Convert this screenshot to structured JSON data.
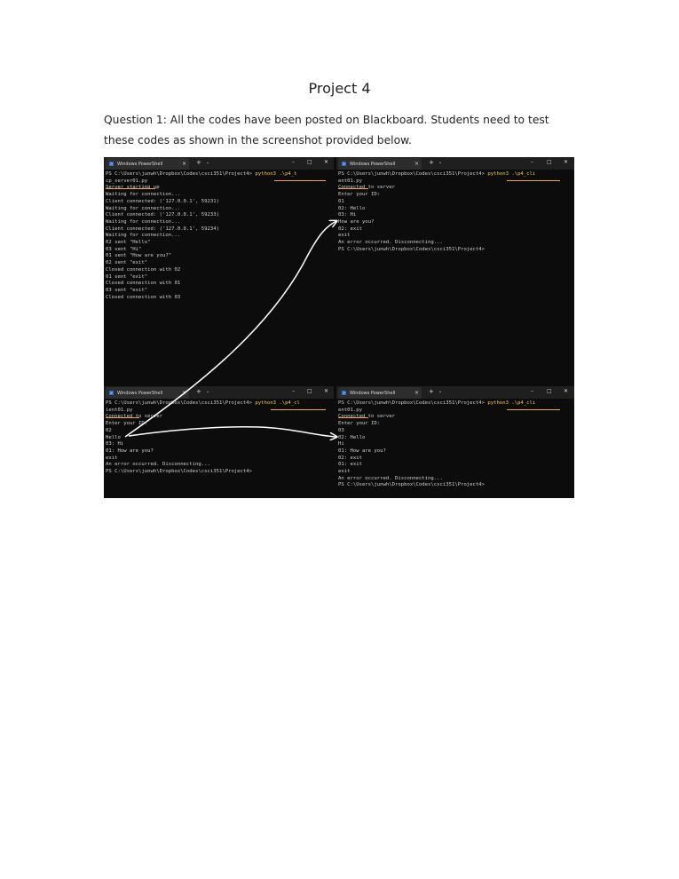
{
  "document": {
    "title": "Project 4",
    "paragraph": "Question 1: All the codes have been posted on Blackboard. Students need to test these codes as shown in the screenshot provided below."
  },
  "tab_common": {
    "title": "Windows PowerShell",
    "close": "×",
    "new_tab": "+",
    "dropdown": "⌄",
    "minimize": "–",
    "maximize": "□",
    "close_window": "✕",
    "icon_glyph": ">"
  },
  "windows": [
    {
      "lines": [
        "PS C:\\Users\\junwh\\Dropbox\\Codes\\csci351\\Project4> ",
        "cp_server01.py",
        "Server starting up",
        "Waiting for connection...",
        "Client connected: ('127.0.0.1', 59231)",
        "Waiting for connection...",
        "Client connected: ('127.0.0.1', 59233)",
        "Waiting for connection...",
        "Client connected: ('127.0.0.1', 59234)",
        "Waiting for connection...",
        "02 sent \"Hello\"",
        "03 sent \"Hi\"",
        "01 sent \"How are you?\"",
        "02 sent \"exit\"",
        "Closed connection with 02",
        "01 sent \"exit\"",
        "Closed connection with 01",
        "03 sent \"exit\"",
        "Closed connection with 03"
      ],
      "command": "python3 .\\p4_t"
    },
    {
      "lines": [
        "PS C:\\Users\\junwh\\Dropbox\\Codes\\csci351\\Project4> ",
        "ent01.py",
        "Connected to server",
        "Enter your ID:",
        "01",
        "02: Hello",
        "03: Hi",
        "How are you?",
        "02: exit",
        "exit",
        "An error occurred. Disconnecting...",
        "PS C:\\Users\\junwh\\Dropbox\\Codes\\csci351\\Project4>"
      ],
      "command": "python3 .\\p4_cli"
    },
    {
      "lines": [
        "PS C:\\Users\\junwh\\Dropbox\\Codes\\csci351\\Project4> ",
        "ient01.py",
        "Connected to server",
        "Enter your ID:",
        "02",
        "Hello",
        "03: Hi",
        "01: How are you?",
        "exit",
        "An error occurred. Disconnecting...",
        "PS C:\\Users\\junwh\\Dropbox\\Codes\\csci351\\Project4>"
      ],
      "command": "python3 .\\p4_cl"
    },
    {
      "lines": [
        "PS C:\\Users\\junwh\\Dropbox\\Codes\\csci351\\Project4> ",
        "ent01.py",
        "Connected to server",
        "Enter your ID:",
        "03",
        "02: Hello",
        "Hi",
        "01: How are you?",
        "02: exit",
        "01: exit",
        "exit",
        "An error occurred. Disconnecting...",
        "PS C:\\Users\\junwh\\Dropbox\\Codes\\csci351\\Project4>"
      ],
      "command": "python3 .\\p4_cli"
    }
  ],
  "colors": {
    "terminal_bg": "#0c0c0c",
    "tab_bar": "#1f1f1f",
    "text": "#cccccc",
    "highlight": "#f2c94c",
    "annotation_underline": "#f0a830",
    "arrow": "#ffffff"
  }
}
